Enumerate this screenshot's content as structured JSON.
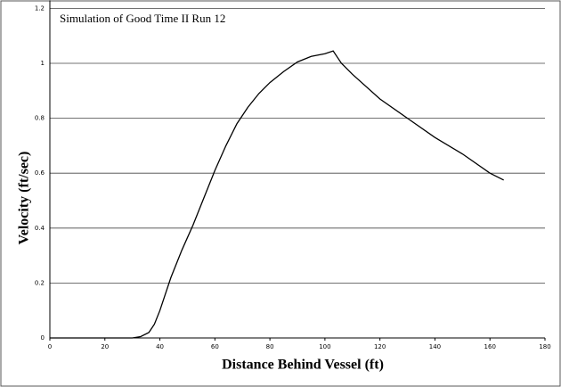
{
  "chart_data": {
    "type": "line",
    "title": "Simulation of Good Time II Run 12",
    "x_label": "Distance Behind Vessel (ft)",
    "y_label": "Velocity (ft/sec)",
    "x": [
      0,
      30,
      33,
      36,
      38,
      40,
      42,
      44,
      48,
      52,
      56,
      60,
      64,
      68,
      72,
      76,
      80,
      85,
      90,
      95,
      100,
      103,
      106,
      110,
      120,
      130,
      140,
      150,
      160,
      165
    ],
    "series": [
      {
        "name": "Velocity",
        "color": "#000000",
        "values": [
          0,
          0,
          0.005,
          0.02,
          0.05,
          0.1,
          0.16,
          0.22,
          0.32,
          0.41,
          0.51,
          0.61,
          0.7,
          0.78,
          0.84,
          0.89,
          0.93,
          0.97,
          1.005,
          1.025,
          1.035,
          1.045,
          1.0,
          0.96,
          0.87,
          0.8,
          0.73,
          0.67,
          0.6,
          0.575
        ]
      }
    ],
    "xlim": [
      0,
      180
    ],
    "xticks": [
      0,
      20,
      40,
      60,
      80,
      100,
      120,
      140,
      160,
      180
    ],
    "ylim": [
      0,
      1.2
    ],
    "yticks": [
      0,
      0.2,
      0.4,
      0.6,
      0.8,
      1,
      1.2
    ],
    "grid": true
  }
}
